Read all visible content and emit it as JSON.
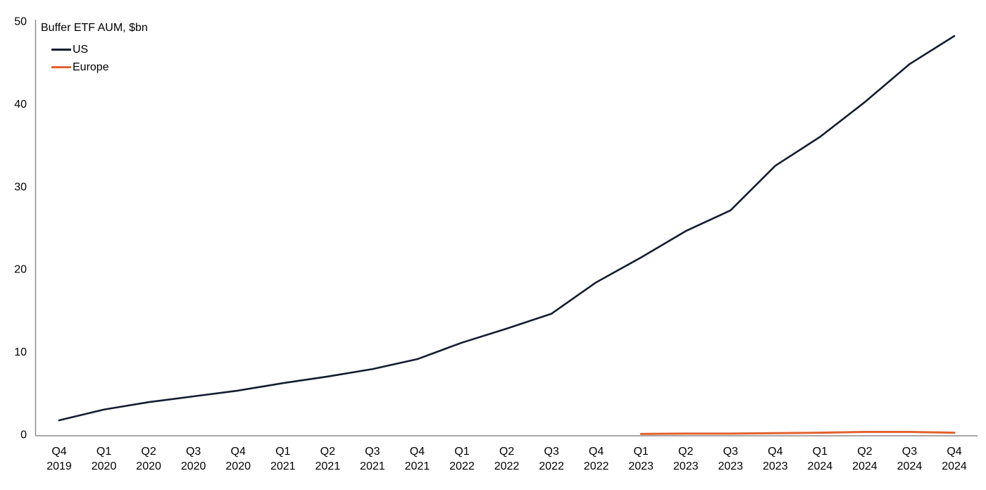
{
  "chart_data": {
    "type": "line",
    "title": "Buffer ETF AUM, $bn",
    "ylabel": "",
    "xlabel": "",
    "ylim": [
      0,
      50
    ],
    "yticks": [
      0,
      10,
      20,
      30,
      40,
      50
    ],
    "grid": false,
    "legend_position": "top-left",
    "axis_color": "#8c8c8c",
    "text_color": "#000000",
    "categories": [
      {
        "quarter": "Q4",
        "year": "2019"
      },
      {
        "quarter": "Q1",
        "year": "2020"
      },
      {
        "quarter": "Q2",
        "year": "2020"
      },
      {
        "quarter": "Q3",
        "year": "2020"
      },
      {
        "quarter": "Q4",
        "year": "2020"
      },
      {
        "quarter": "Q1",
        "year": "2021"
      },
      {
        "quarter": "Q2",
        "year": "2021"
      },
      {
        "quarter": "Q3",
        "year": "2021"
      },
      {
        "quarter": "Q4",
        "year": "2021"
      },
      {
        "quarter": "Q1",
        "year": "2022"
      },
      {
        "quarter": "Q2",
        "year": "2022"
      },
      {
        "quarter": "Q3",
        "year": "2022"
      },
      {
        "quarter": "Q4",
        "year": "2022"
      },
      {
        "quarter": "Q1",
        "year": "2023"
      },
      {
        "quarter": "Q2",
        "year": "2023"
      },
      {
        "quarter": "Q3",
        "year": "2023"
      },
      {
        "quarter": "Q4",
        "year": "2023"
      },
      {
        "quarter": "Q1",
        "year": "2024"
      },
      {
        "quarter": "Q2",
        "year": "2024"
      },
      {
        "quarter": "Q3",
        "year": "2024"
      },
      {
        "quarter": "Q4",
        "year": "2024"
      }
    ],
    "series": [
      {
        "name": "US",
        "color": "#141c30",
        "stroke_width": 2.6,
        "values": [
          1.7,
          3.0,
          3.9,
          4.6,
          5.3,
          6.2,
          7.0,
          7.9,
          9.1,
          11.1,
          12.8,
          14.6,
          18.4,
          21.4,
          24.6,
          27.1,
          32.5,
          36.0,
          40.2,
          44.8,
          48.2
        ]
      },
      {
        "name": "Europe",
        "color": "#e2622e",
        "stroke_width": 3,
        "values": [
          null,
          null,
          null,
          null,
          null,
          null,
          null,
          null,
          null,
          null,
          null,
          null,
          null,
          0.05,
          0.1,
          0.1,
          0.15,
          0.2,
          0.3,
          0.3,
          0.2
        ]
      }
    ]
  }
}
